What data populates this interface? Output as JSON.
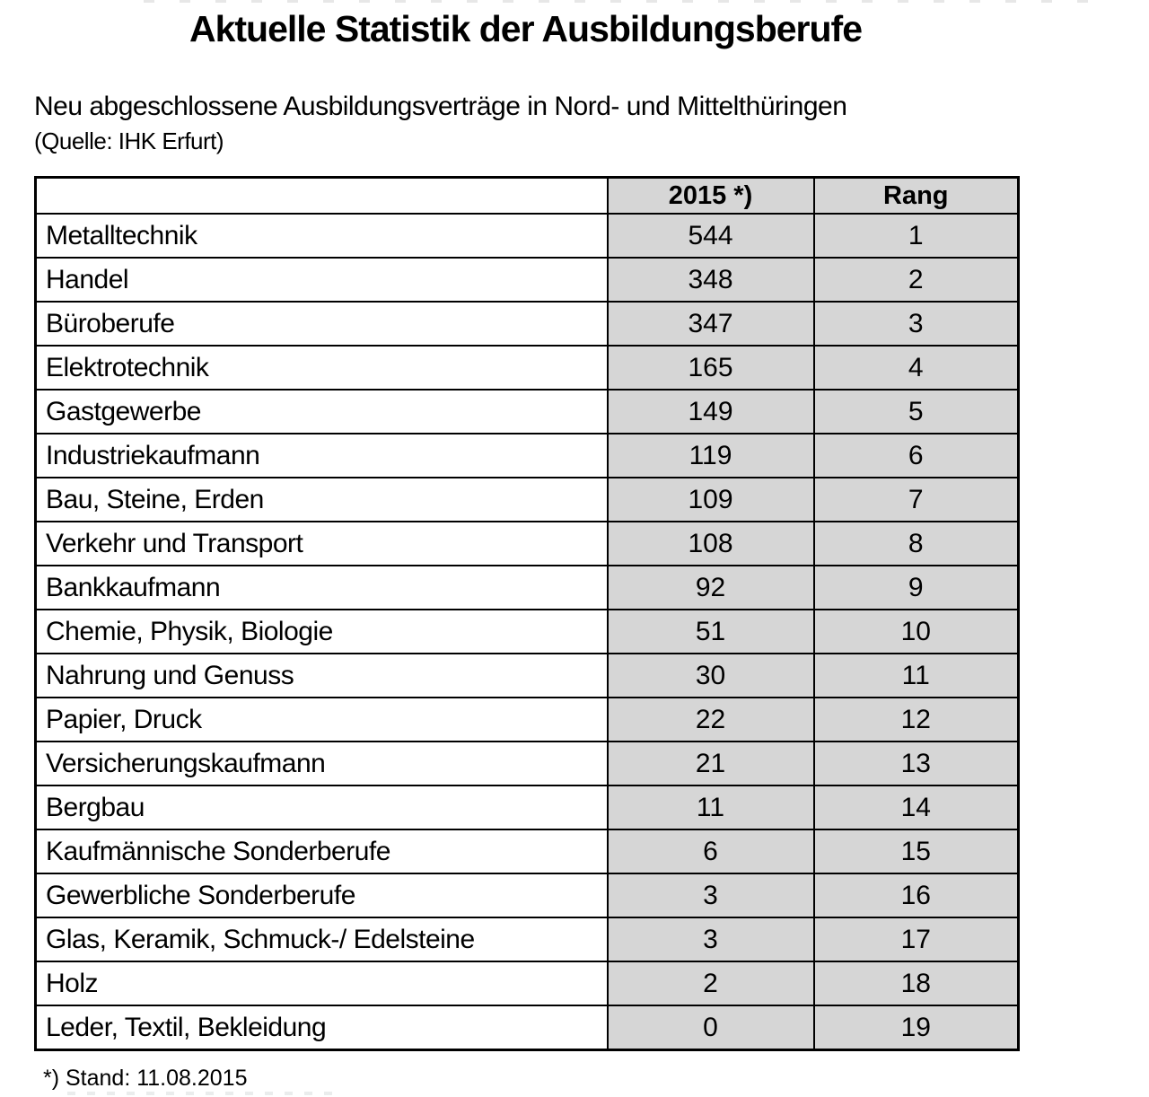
{
  "page": {
    "title": "Aktuelle Statistik der Ausbildungsberufe",
    "subtitle": "Neu abgeschlossene Ausbildungsverträge in Nord- und Mittelthüringen",
    "source": "(Quelle: IHK Erfurt)",
    "footnote": "*) Stand: 11.08.2015"
  },
  "table": {
    "columns": [
      "",
      "2015 *)",
      "Rang"
    ],
    "rows": [
      {
        "beruf": "Metalltechnik",
        "value": "544",
        "rang": "1"
      },
      {
        "beruf": "Handel",
        "value": "348",
        "rang": "2"
      },
      {
        "beruf": "Büroberufe",
        "value": "347",
        "rang": "3"
      },
      {
        "beruf": "Elektrotechnik",
        "value": "165",
        "rang": "4"
      },
      {
        "beruf": "Gastgewerbe",
        "value": "149",
        "rang": "5"
      },
      {
        "beruf": "Industriekaufmann",
        "value": "119",
        "rang": "6"
      },
      {
        "beruf": "Bau, Steine, Erden",
        "value": "109",
        "rang": "7"
      },
      {
        "beruf": "Verkehr und Transport",
        "value": "108",
        "rang": "8"
      },
      {
        "beruf": "Bankkaufmann",
        "value": "92",
        "rang": "9"
      },
      {
        "beruf": "Chemie, Physik, Biologie",
        "value": "51",
        "rang": "10"
      },
      {
        "beruf": "Nahrung und Genuss",
        "value": "30",
        "rang": "11"
      },
      {
        "beruf": "Papier, Druck",
        "value": "22",
        "rang": "12"
      },
      {
        "beruf": "Versicherungskaufmann",
        "value": "21",
        "rang": "13"
      },
      {
        "beruf": "Bergbau",
        "value": "11",
        "rang": "14"
      },
      {
        "beruf": "Kaufmännische Sonderberufe",
        "value": "6",
        "rang": "15"
      },
      {
        "beruf": "Gewerbliche Sonderberufe",
        "value": "3",
        "rang": "16"
      },
      {
        "beruf": "Glas, Keramik, Schmuck-/ Edelsteine",
        "value": "3",
        "rang": "17"
      },
      {
        "beruf": "Holz",
        "value": "2",
        "rang": "18"
      },
      {
        "beruf": "Leder, Textil, Bekleidung",
        "value": "0",
        "rang": "19"
      }
    ]
  },
  "colors": {
    "cell_gray": "#d6d6d6",
    "border": "#000000",
    "background": "#ffffff"
  }
}
